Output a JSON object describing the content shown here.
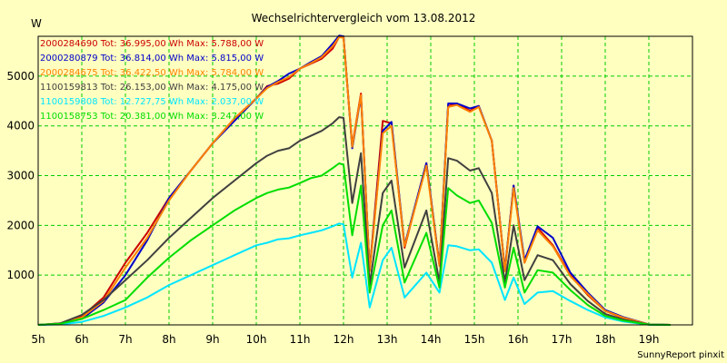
{
  "chart_data": {
    "type": "line",
    "title": "Wechselrichtervergleich vom 13.08.2012",
    "ylabel": "W",
    "footer": "SunnyReport pinxit",
    "xlim": [
      5,
      20
    ],
    "ylim": [
      0,
      5800
    ],
    "grid": true,
    "background": "#ffffc0",
    "gridColor": "#00cc00",
    "x_ticks": [
      {
        "v": 5,
        "label": "5h"
      },
      {
        "v": 6,
        "label": "6h"
      },
      {
        "v": 7,
        "label": "7h"
      },
      {
        "v": 8,
        "label": "8h"
      },
      {
        "v": 9,
        "label": "9h"
      },
      {
        "v": 10,
        "label": "10h"
      },
      {
        "v": 11,
        "label": "11h"
      },
      {
        "v": 12,
        "label": "12h"
      },
      {
        "v": 13,
        "label": "13h"
      },
      {
        "v": 14,
        "label": "14h"
      },
      {
        "v": 15,
        "label": "15h"
      },
      {
        "v": 16,
        "label": "16h"
      },
      {
        "v": 17,
        "label": "17h"
      },
      {
        "v": 18,
        "label": "18h"
      },
      {
        "v": 19,
        "label": "19h"
      }
    ],
    "y_ticks": [
      {
        "v": 1000,
        "label": "1000"
      },
      {
        "v": 2000,
        "label": "2000"
      },
      {
        "v": 3000,
        "label": "3000"
      },
      {
        "v": 4000,
        "label": "4000"
      },
      {
        "v": 5000,
        "label": "5000"
      }
    ],
    "series": [
      {
        "id": "2000284690",
        "color": "#cc0000",
        "legend": "2000284690 Tot: 36.995,00 Wh Max: 5.788,00 W",
        "points": [
          [
            5,
            0
          ],
          [
            5.5,
            30
          ],
          [
            6,
            170
          ],
          [
            6.5,
            550
          ],
          [
            7,
            1250
          ],
          [
            7.5,
            1850
          ],
          [
            8,
            2550
          ],
          [
            8.5,
            3100
          ],
          [
            9,
            3650
          ],
          [
            9.5,
            4150
          ],
          [
            10,
            4550
          ],
          [
            10.25,
            4800
          ],
          [
            10.5,
            4850
          ],
          [
            10.75,
            4950
          ],
          [
            11,
            5150
          ],
          [
            11.25,
            5250
          ],
          [
            11.5,
            5350
          ],
          [
            11.75,
            5550
          ],
          [
            11.9,
            5788
          ],
          [
            12,
            5780
          ],
          [
            12.2,
            3600
          ],
          [
            12.4,
            4650
          ],
          [
            12.6,
            1100
          ],
          [
            12.9,
            4100
          ],
          [
            13.1,
            4050
          ],
          [
            13.4,
            1550
          ],
          [
            13.9,
            3250
          ],
          [
            14.2,
            1200
          ],
          [
            14.4,
            4400
          ],
          [
            14.6,
            4450
          ],
          [
            14.9,
            4300
          ],
          [
            15.1,
            4400
          ],
          [
            15.4,
            3700
          ],
          [
            15.7,
            1100
          ],
          [
            15.9,
            2800
          ],
          [
            16.15,
            1250
          ],
          [
            16.45,
            1950
          ],
          [
            16.8,
            1600
          ],
          [
            17.2,
            1000
          ],
          [
            17.6,
            600
          ],
          [
            18,
            280
          ],
          [
            18.4,
            140
          ],
          [
            19,
            10
          ],
          [
            19.5,
            0
          ]
        ]
      },
      {
        "id": "2000280879",
        "color": "#0000cc",
        "legend": "2000280879 Tot: 36.814,00 Wh Max: 5.815,00 W",
        "points": [
          [
            5,
            0
          ],
          [
            5.5,
            20
          ],
          [
            6,
            120
          ],
          [
            6.5,
            450
          ],
          [
            7,
            1000
          ],
          [
            7.5,
            1700
          ],
          [
            8,
            2550
          ],
          [
            8.5,
            3100
          ],
          [
            9,
            3650
          ],
          [
            9.5,
            4100
          ],
          [
            10,
            4550
          ],
          [
            10.25,
            4780
          ],
          [
            10.5,
            4900
          ],
          [
            10.75,
            5050
          ],
          [
            11,
            5150
          ],
          [
            11.25,
            5280
          ],
          [
            11.5,
            5400
          ],
          [
            11.75,
            5650
          ],
          [
            11.9,
            5815
          ],
          [
            12,
            5800
          ],
          [
            12.2,
            3550
          ],
          [
            12.4,
            4600
          ],
          [
            12.6,
            1100
          ],
          [
            12.9,
            3900
          ],
          [
            13.1,
            4080
          ],
          [
            13.4,
            1600
          ],
          [
            13.9,
            3250
          ],
          [
            14.2,
            1200
          ],
          [
            14.4,
            4450
          ],
          [
            14.6,
            4450
          ],
          [
            14.9,
            4350
          ],
          [
            15.1,
            4400
          ],
          [
            15.4,
            3700
          ],
          [
            15.7,
            1100
          ],
          [
            15.9,
            2800
          ],
          [
            16.15,
            1300
          ],
          [
            16.45,
            1980
          ],
          [
            16.8,
            1750
          ],
          [
            17.2,
            1050
          ],
          [
            17.6,
            650
          ],
          [
            18,
            300
          ],
          [
            18.4,
            160
          ],
          [
            19,
            10
          ],
          [
            19.5,
            0
          ]
        ]
      },
      {
        "id": "2000284675",
        "color": "#ff8000",
        "legend": "2000284675 Tot: 36.422,50 Wh Max: 5.784,00 W",
        "points": [
          [
            5,
            0
          ],
          [
            5.5,
            25
          ],
          [
            6,
            150
          ],
          [
            6.5,
            480
          ],
          [
            7,
            1150
          ],
          [
            7.5,
            1750
          ],
          [
            8,
            2500
          ],
          [
            8.5,
            3100
          ],
          [
            9,
            3650
          ],
          [
            9.5,
            4150
          ],
          [
            10,
            4550
          ],
          [
            10.25,
            4760
          ],
          [
            10.5,
            4880
          ],
          [
            10.75,
            4980
          ],
          [
            11,
            5150
          ],
          [
            11.25,
            5260
          ],
          [
            11.5,
            5380
          ],
          [
            11.75,
            5600
          ],
          [
            11.9,
            5784
          ],
          [
            12,
            5770
          ],
          [
            12.2,
            3580
          ],
          [
            12.4,
            4620
          ],
          [
            12.6,
            1080
          ],
          [
            12.9,
            3850
          ],
          [
            13.1,
            4000
          ],
          [
            13.4,
            1580
          ],
          [
            13.9,
            3200
          ],
          [
            14.2,
            1180
          ],
          [
            14.4,
            4380
          ],
          [
            14.6,
            4420
          ],
          [
            14.9,
            4280
          ],
          [
            15.1,
            4380
          ],
          [
            15.4,
            3700
          ],
          [
            15.7,
            1080
          ],
          [
            15.9,
            2750
          ],
          [
            16.15,
            1250
          ],
          [
            16.45,
            1900
          ],
          [
            16.8,
            1580
          ],
          [
            17.2,
            980
          ],
          [
            17.6,
            620
          ],
          [
            18,
            280
          ],
          [
            18.4,
            150
          ],
          [
            19,
            10
          ],
          [
            19.5,
            0
          ]
        ]
      },
      {
        "id": "1100159813",
        "color": "#404040",
        "legend": "1100159813 Tot: 26.153,00 Wh Max: 4.175,00 W",
        "points": [
          [
            5,
            0
          ],
          [
            5.5,
            30
          ],
          [
            6,
            200
          ],
          [
            6.5,
            500
          ],
          [
            7,
            900
          ],
          [
            7.5,
            1300
          ],
          [
            8,
            1750
          ],
          [
            8.5,
            2150
          ],
          [
            9,
            2550
          ],
          [
            9.5,
            2900
          ],
          [
            10,
            3250
          ],
          [
            10.25,
            3400
          ],
          [
            10.5,
            3500
          ],
          [
            10.75,
            3550
          ],
          [
            11,
            3700
          ],
          [
            11.25,
            3800
          ],
          [
            11.5,
            3900
          ],
          [
            11.75,
            4050
          ],
          [
            11.9,
            4175
          ],
          [
            12,
            4160
          ],
          [
            12.2,
            2450
          ],
          [
            12.4,
            3450
          ],
          [
            12.6,
            800
          ],
          [
            12.9,
            2650
          ],
          [
            13.1,
            2900
          ],
          [
            13.4,
            1150
          ],
          [
            13.9,
            2300
          ],
          [
            14.2,
            850
          ],
          [
            14.4,
            3350
          ],
          [
            14.6,
            3300
          ],
          [
            14.9,
            3100
          ],
          [
            15.1,
            3150
          ],
          [
            15.4,
            2650
          ],
          [
            15.7,
            850
          ],
          [
            15.9,
            2000
          ],
          [
            16.15,
            900
          ],
          [
            16.45,
            1400
          ],
          [
            16.8,
            1300
          ],
          [
            17.2,
            820
          ],
          [
            17.6,
            480
          ],
          [
            18,
            220
          ],
          [
            18.4,
            110
          ],
          [
            19,
            8
          ],
          [
            19.5,
            0
          ]
        ]
      },
      {
        "id": "1100159808",
        "color": "#00e5ff",
        "legend": "1100159808 Tot: 12.727,75 Wh Max: 2.037,00 W",
        "points": [
          [
            5,
            0
          ],
          [
            5.5,
            10
          ],
          [
            6,
            60
          ],
          [
            6.5,
            180
          ],
          [
            7,
            350
          ],
          [
            7.5,
            550
          ],
          [
            8,
            800
          ],
          [
            8.5,
            1000
          ],
          [
            9,
            1200
          ],
          [
            9.5,
            1400
          ],
          [
            10,
            1600
          ],
          [
            10.25,
            1650
          ],
          [
            10.5,
            1720
          ],
          [
            10.75,
            1740
          ],
          [
            11,
            1800
          ],
          [
            11.25,
            1850
          ],
          [
            11.5,
            1900
          ],
          [
            11.75,
            1980
          ],
          [
            11.9,
            2037
          ],
          [
            12,
            2020
          ],
          [
            12.2,
            950
          ],
          [
            12.4,
            1650
          ],
          [
            12.6,
            350
          ],
          [
            12.9,
            1300
          ],
          [
            13.1,
            1550
          ],
          [
            13.4,
            550
          ],
          [
            13.9,
            1050
          ],
          [
            14.2,
            650
          ],
          [
            14.4,
            1600
          ],
          [
            14.6,
            1580
          ],
          [
            14.9,
            1500
          ],
          [
            15.1,
            1520
          ],
          [
            15.4,
            1250
          ],
          [
            15.7,
            500
          ],
          [
            15.9,
            950
          ],
          [
            16.15,
            420
          ],
          [
            16.45,
            650
          ],
          [
            16.8,
            680
          ],
          [
            17.2,
            480
          ],
          [
            17.6,
            300
          ],
          [
            18,
            150
          ],
          [
            18.4,
            70
          ],
          [
            19,
            5
          ],
          [
            19.5,
            0
          ]
        ]
      },
      {
        "id": "1100158753",
        "color": "#00dd00",
        "legend": "1100158753 Tot: 20.381,00 Wh Max: 3.247,00 W",
        "points": [
          [
            5,
            0
          ],
          [
            5.5,
            20
          ],
          [
            6,
            120
          ],
          [
            6.5,
            300
          ],
          [
            7,
            500
          ],
          [
            7.5,
            950
          ],
          [
            8,
            1350
          ],
          [
            8.5,
            1700
          ],
          [
            9,
            2000
          ],
          [
            9.5,
            2300
          ],
          [
            10,
            2550
          ],
          [
            10.25,
            2650
          ],
          [
            10.5,
            2720
          ],
          [
            10.75,
            2760
          ],
          [
            11,
            2850
          ],
          [
            11.25,
            2950
          ],
          [
            11.5,
            3000
          ],
          [
            11.75,
            3150
          ],
          [
            11.9,
            3247
          ],
          [
            12,
            3220
          ],
          [
            12.2,
            1800
          ],
          [
            12.4,
            2800
          ],
          [
            12.6,
            650
          ],
          [
            12.9,
            2000
          ],
          [
            13.1,
            2300
          ],
          [
            13.4,
            850
          ],
          [
            13.9,
            1850
          ],
          [
            14.2,
            750
          ],
          [
            14.4,
            2750
          ],
          [
            14.6,
            2600
          ],
          [
            14.9,
            2450
          ],
          [
            15.1,
            2500
          ],
          [
            15.4,
            2050
          ],
          [
            15.7,
            750
          ],
          [
            15.9,
            1550
          ],
          [
            16.15,
            650
          ],
          [
            16.45,
            1100
          ],
          [
            16.8,
            1050
          ],
          [
            17.2,
            700
          ],
          [
            17.6,
            400
          ],
          [
            18,
            180
          ],
          [
            18.4,
            90
          ],
          [
            19,
            6
          ],
          [
            19.5,
            0
          ]
        ]
      }
    ]
  }
}
